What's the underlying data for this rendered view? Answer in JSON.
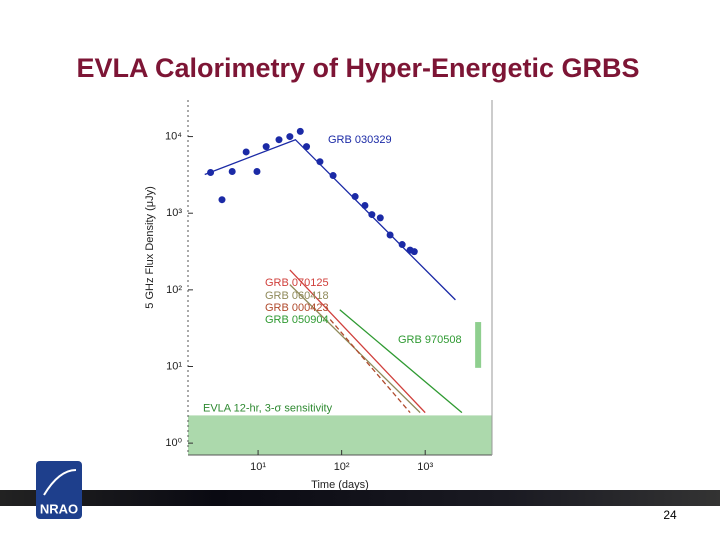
{
  "title": "EVLA Calorimetry of Hyper-Energetic GRBS",
  "page_number": "24",
  "logo_text": "NRAO",
  "chart_data": {
    "type": "line",
    "x_label": "Time (days)",
    "y_label": "5 GHz Flux Density (μJy)",
    "xscale": "log",
    "yscale": "log",
    "xlim": [
      1.45,
      6300
    ],
    "ylim": [
      0.7,
      30000
    ],
    "xticks": [
      {
        "value": 10,
        "label": "10¹"
      },
      {
        "value": 100,
        "label": "10²"
      },
      {
        "value": 1000,
        "label": "10³"
      }
    ],
    "yticks": [
      {
        "value": 1,
        "label": "10⁰"
      },
      {
        "value": 10,
        "label": "10¹"
      },
      {
        "value": 100,
        "label": "10²"
      },
      {
        "value": 1000,
        "label": "10³"
      },
      {
        "value": 10000,
        "label": "10⁴"
      }
    ],
    "series": [
      {
        "name": "GRB 030329",
        "color": "#1b2aa6",
        "mode": "markers",
        "x": [
          2.7,
          3.7,
          4.9,
          7.2,
          9.7,
          12.5,
          17.8,
          24,
          32,
          38,
          55,
          79,
          145,
          190,
          230,
          290,
          380,
          530,
          660,
          740
        ],
        "values": [
          3400,
          1500,
          3500,
          6300,
          3500,
          7400,
          9100,
          10000,
          11700,
          7400,
          4700,
          3100,
          1650,
          1260,
          960,
          870,
          520,
          390,
          330,
          315
        ],
        "fit": {
          "x": [
            2.3,
            28,
            2300
          ],
          "values": [
            3200,
            9100,
            74
          ]
        }
      },
      {
        "name": "GRB 070125",
        "color": "#d0403c",
        "mode": "line",
        "x": [
          24,
          1000
        ],
        "values": [
          182,
          2.5
        ]
      },
      {
        "name": "GRB 060418",
        "color": "#8f8a5a",
        "mode": "line",
        "x": [
          24,
          870
        ],
        "values": [
          117,
          2.5
        ]
      },
      {
        "name": "GRB 000423",
        "color": "#b04a2c",
        "mode": "line",
        "dash": true,
        "x": [
          73,
          660
        ],
        "values": [
          41,
          2.5
        ]
      },
      {
        "name": "GRB 050904",
        "color": "#2f9a32",
        "mode": "line",
        "x": [
          95,
          2750
        ],
        "values": [
          55,
          2.5
        ]
      },
      {
        "name": "GRB 970508",
        "color": "#8fcf8f",
        "mode": "range",
        "x": [
          4300,
          4300
        ],
        "values": [
          9.6,
          38
        ]
      }
    ],
    "band": {
      "label": "EVLA 12-hr, 3-σ sensitivity",
      "value": 2.3,
      "color": "#acd9ac"
    }
  }
}
